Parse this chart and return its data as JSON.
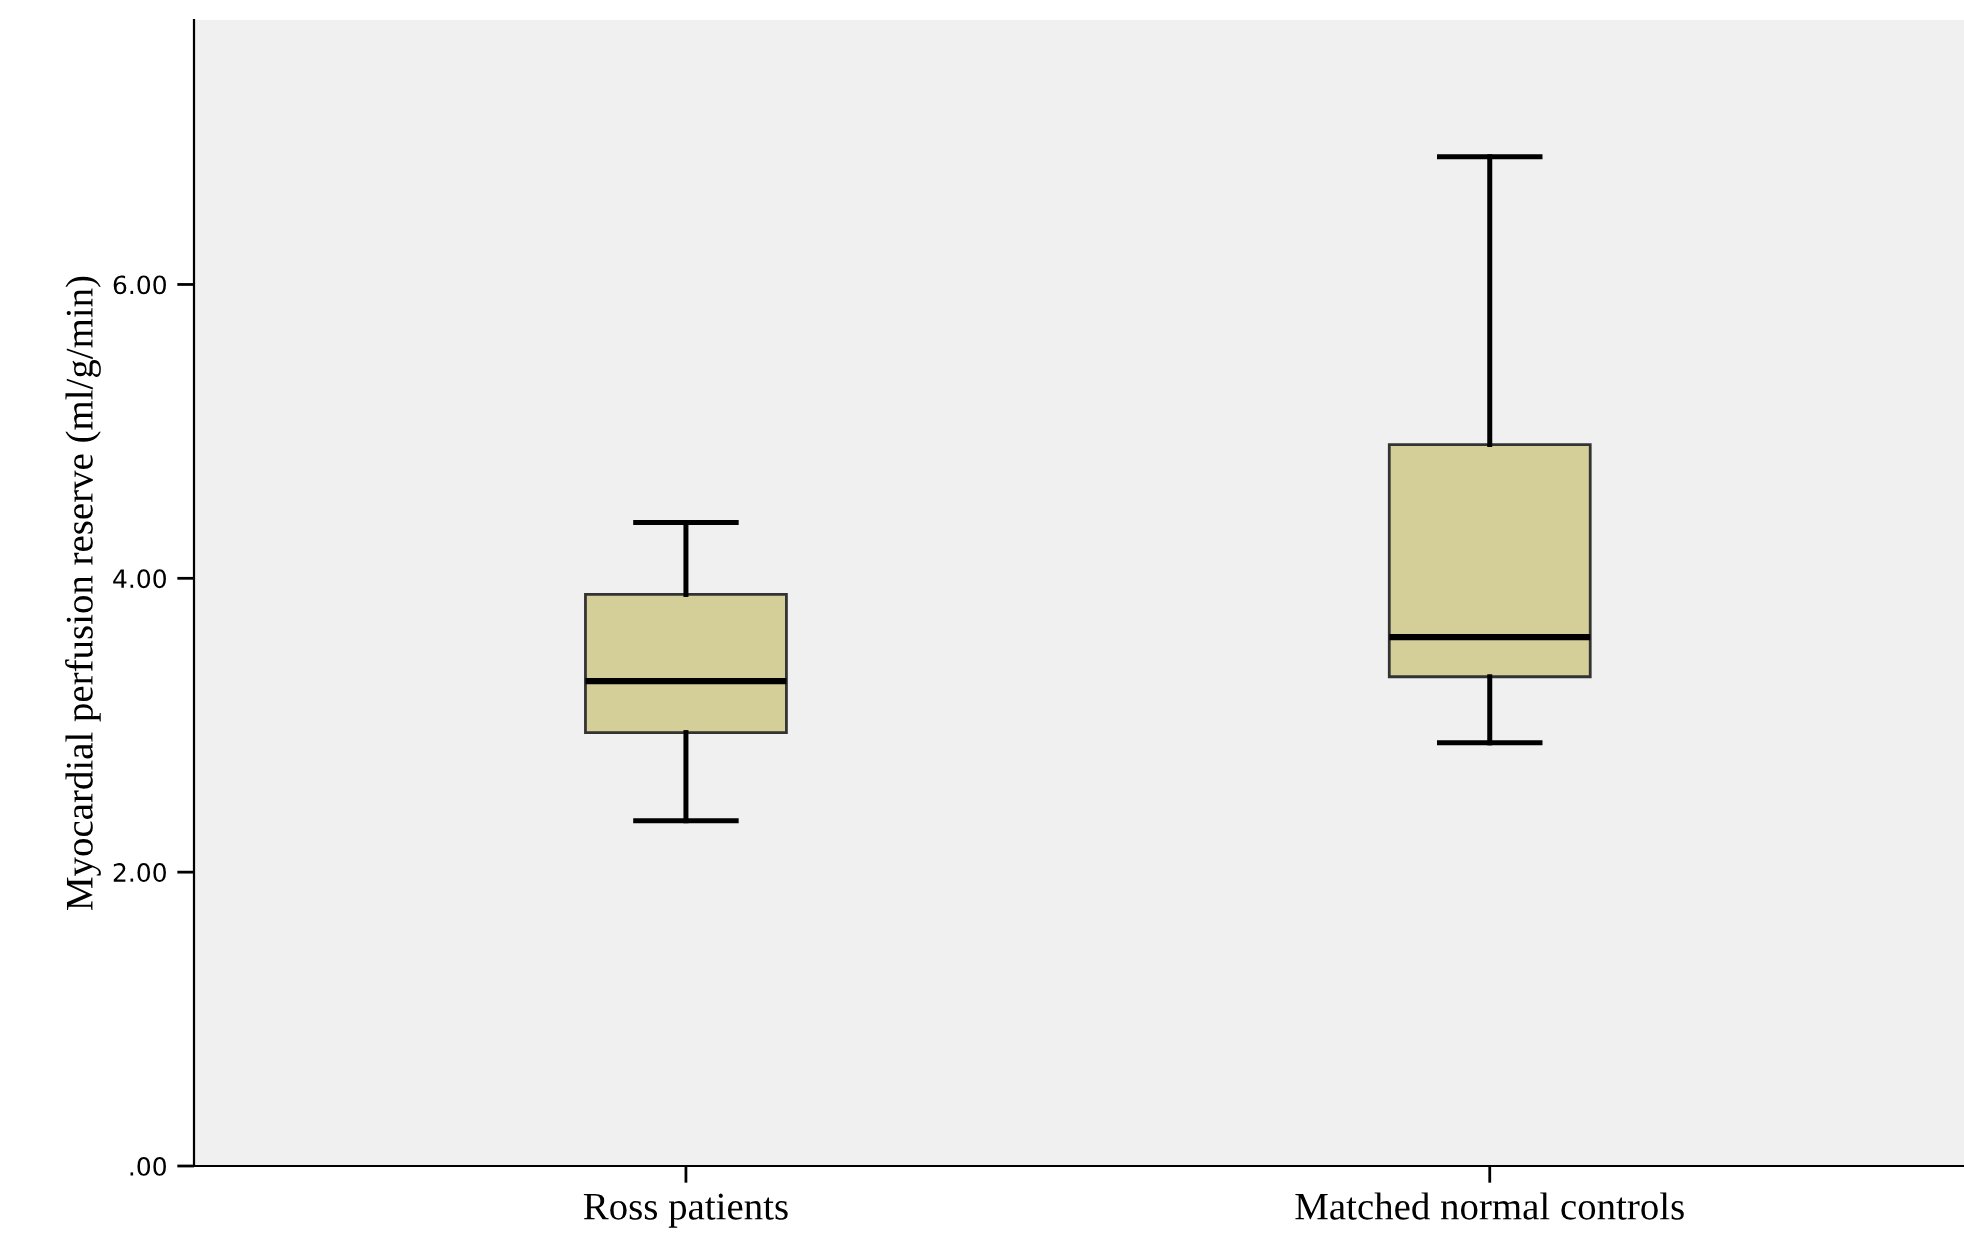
{
  "chart_data": {
    "type": "box",
    "ylabel": "Myocardial perfusion reserve (ml/g/min)",
    "categories": [
      "Ross patients",
      "Matched normal controls"
    ],
    "boxes": [
      {
        "low": 2.35,
        "q1": 2.95,
        "median": 3.3,
        "q3": 3.89,
        "high": 4.38
      },
      {
        "low": 2.88,
        "q1": 3.33,
        "median": 3.6,
        "q3": 4.91,
        "high": 6.87
      }
    ],
    "color": "#d4ce98",
    "ylim": [
      0,
      7.8
    ],
    "yticks": [
      {
        "value": 0,
        "label": ".00"
      },
      {
        "value": 2,
        "label": "2.00"
      },
      {
        "value": 4,
        "label": "4.00"
      },
      {
        "value": 6,
        "label": "6.00"
      }
    ],
    "grid": false
  }
}
